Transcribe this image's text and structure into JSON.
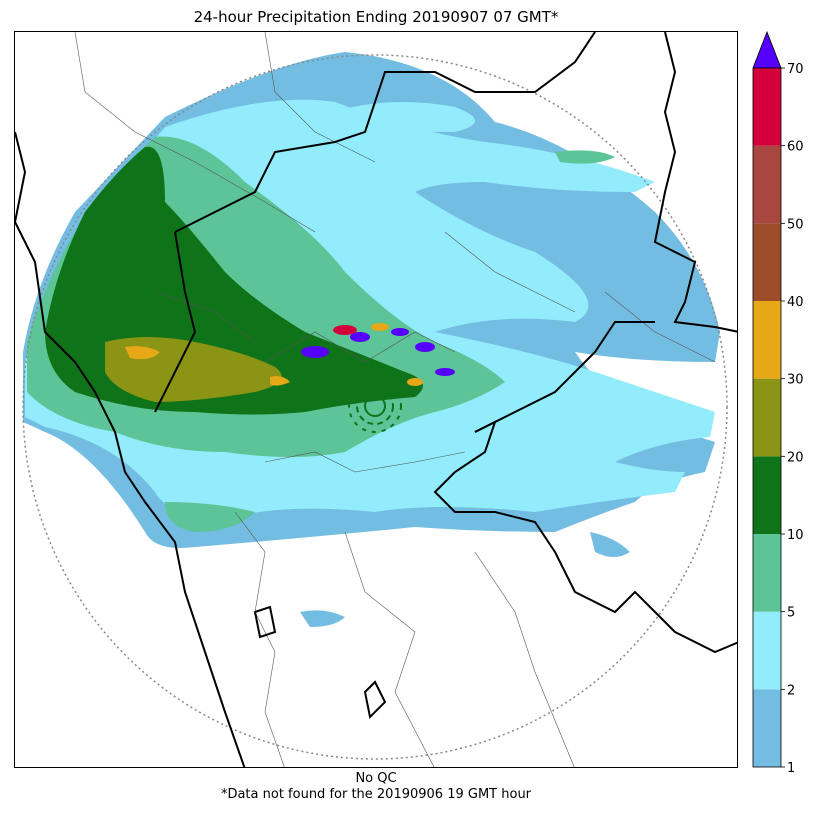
{
  "map": {
    "title": "24-hour Precipitation Ending 20190907 07 GMT*",
    "qc_note": "No QC",
    "footnote": "*Data not found for the 20190906 19 GMT hour"
  },
  "colorbar": {
    "ticks": [
      "1",
      "2",
      "5",
      "10",
      "20",
      "30",
      "40",
      "50",
      "60",
      "70"
    ],
    "colors": [
      "#74bde2",
      "#93ecfc",
      "#5cc497",
      "#0f7319",
      "#8c9415",
      "#e6a817",
      "#9c4c28",
      "#a8463f",
      "#d4003c"
    ],
    "extend_color": "#5500ff",
    "extend": "max"
  },
  "palette": {
    "radar_range_ring": "#888888",
    "state_border": "#000000",
    "district_border": "#555555"
  }
}
